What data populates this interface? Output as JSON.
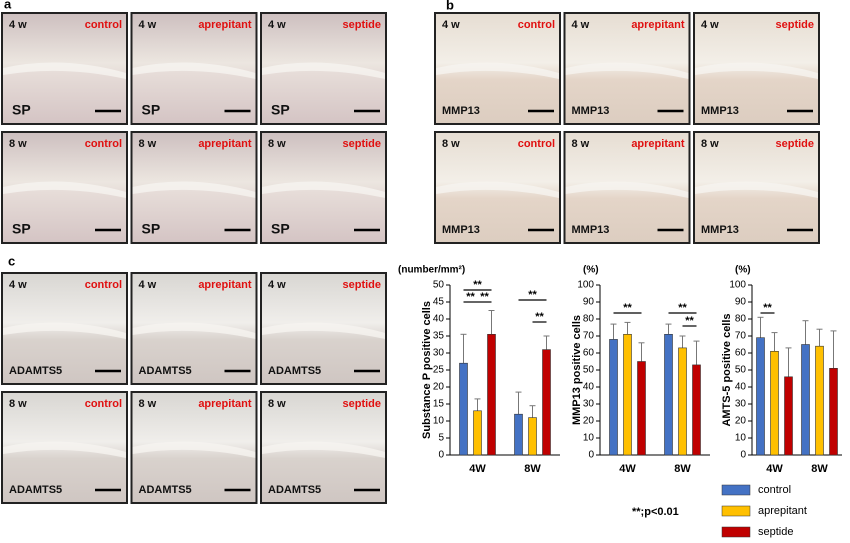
{
  "panels": [
    {
      "label": "a",
      "images": [
        {
          "time": "4 w",
          "condition": "control",
          "marker": "SP"
        },
        {
          "time": "4 w",
          "condition": "aprepitant",
          "marker": "SP"
        },
        {
          "time": "4 w",
          "condition": "septide",
          "marker": "SP"
        },
        {
          "time": "8 w",
          "condition": "control",
          "marker": "SP"
        },
        {
          "time": "8 w",
          "condition": "aprepitant",
          "marker": "SP"
        },
        {
          "time": "8 w",
          "condition": "septide",
          "marker": "SP"
        }
      ]
    },
    {
      "label": "b",
      "images": [
        {
          "time": "4 w",
          "condition": "control",
          "marker": "MMP13"
        },
        {
          "time": "4 w",
          "condition": "aprepitant",
          "marker": "MMP13"
        },
        {
          "time": "4 w",
          "condition": "septide",
          "marker": "MMP13"
        },
        {
          "time": "8 w",
          "condition": "control",
          "marker": "MMP13"
        },
        {
          "time": "8 w",
          "condition": "aprepitant",
          "marker": "MMP13"
        },
        {
          "time": "8 w",
          "condition": "septide",
          "marker": "MMP13"
        }
      ]
    },
    {
      "label": "c",
      "images": [
        {
          "time": "4 w",
          "condition": "control",
          "marker": "ADAMTS5"
        },
        {
          "time": "4 w",
          "condition": "aprepitant",
          "marker": "ADAMTS5"
        },
        {
          "time": "4 w",
          "condition": "septide",
          "marker": "ADAMTS5"
        },
        {
          "time": "8 w",
          "condition": "control",
          "marker": "ADAMTS5"
        },
        {
          "time": "8 w",
          "condition": "aprepitant",
          "marker": "ADAMTS5"
        },
        {
          "time": "8 w",
          "condition": "septide",
          "marker": "ADAMTS5"
        }
      ]
    }
  ],
  "chart_data": [
    {
      "type": "bar",
      "unit": "(number/mm²)",
      "y_label": "Substance P positive cells",
      "categories": [
        "4W",
        "8W"
      ],
      "ylim": [
        0,
        50
      ],
      "yticks": [
        0,
        5,
        10,
        15,
        20,
        25,
        30,
        35,
        40,
        45,
        50
      ],
      "series": [
        {
          "name": "control",
          "color": "#4472c4",
          "values": [
            27,
            12
          ],
          "errors": [
            8.5,
            6.5
          ]
        },
        {
          "name": "aprepitant",
          "color": "#ffc000",
          "values": [
            13,
            11
          ],
          "errors": [
            3.5,
            3.5
          ]
        },
        {
          "name": "septide",
          "color": "#c00000",
          "values": [
            35.5,
            31
          ],
          "errors": [
            7,
            4
          ]
        }
      ],
      "annotations": [
        "**",
        "**",
        "**",
        "**",
        "**"
      ]
    },
    {
      "type": "bar",
      "unit": "(%)",
      "y_label": "MMP13 positive cells",
      "categories": [
        "4W",
        "8W"
      ],
      "ylim": [
        0,
        100
      ],
      "yticks": [
        0,
        10,
        20,
        30,
        40,
        50,
        60,
        70,
        80,
        90,
        100
      ],
      "series": [
        {
          "name": "control",
          "color": "#4472c4",
          "values": [
            68,
            71
          ],
          "errors": [
            9,
            6
          ]
        },
        {
          "name": "aprepitant",
          "color": "#ffc000",
          "values": [
            71,
            63
          ],
          "errors": [
            7,
            7
          ]
        },
        {
          "name": "septide",
          "color": "#c00000",
          "values": [
            55,
            53
          ],
          "errors": [
            11,
            14
          ]
        }
      ],
      "annotations": [
        "**",
        "**",
        "**"
      ]
    },
    {
      "type": "bar",
      "unit": "(%)",
      "y_label": "AMTS-5 positive cells",
      "categories": [
        "4W",
        "8W"
      ],
      "ylim": [
        0,
        100
      ],
      "yticks": [
        0,
        10,
        20,
        30,
        40,
        50,
        60,
        70,
        80,
        90,
        100
      ],
      "series": [
        {
          "name": "control",
          "color": "#4472c4",
          "values": [
            69,
            65
          ],
          "errors": [
            12,
            14
          ]
        },
        {
          "name": "aprepitant",
          "color": "#ffc000",
          "values": [
            61,
            64
          ],
          "errors": [
            11,
            10
          ]
        },
        {
          "name": "septide",
          "color": "#c00000",
          "values": [
            46,
            51
          ],
          "errors": [
            17,
            22
          ]
        }
      ],
      "annotations": [
        "**"
      ]
    }
  ],
  "significance_note": "**;p<0.01"
}
